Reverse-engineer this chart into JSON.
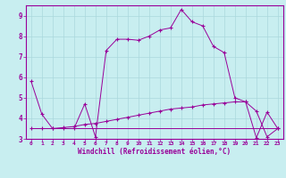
{
  "xlabel": "Windchill (Refroidissement éolien,°C)",
  "bg_color": "#c8eef0",
  "grid_color": "#aad8dc",
  "line_color": "#990099",
  "xlim": [
    -0.5,
    23.5
  ],
  "ylim": [
    3,
    9.5
  ],
  "yticks": [
    3,
    4,
    5,
    6,
    7,
    8,
    9
  ],
  "xticks": [
    0,
    1,
    2,
    3,
    4,
    5,
    6,
    7,
    8,
    9,
    10,
    11,
    12,
    13,
    14,
    15,
    16,
    17,
    18,
    19,
    20,
    21,
    22,
    23
  ],
  "series1_x": [
    0,
    1,
    2,
    3,
    4,
    5,
    6,
    7,
    8,
    9,
    10,
    11,
    12,
    13,
    14,
    15,
    16,
    17,
    18,
    19,
    20,
    21,
    22,
    23
  ],
  "series1_y": [
    5.8,
    4.2,
    3.5,
    3.5,
    3.5,
    4.7,
    3.1,
    7.3,
    7.85,
    7.85,
    7.8,
    8.0,
    8.3,
    8.4,
    9.3,
    8.7,
    8.5,
    7.5,
    7.2,
    5.0,
    4.8,
    4.35,
    3.1,
    3.5
  ],
  "series2_x": [
    0,
    1,
    2,
    3,
    4,
    5,
    6,
    7,
    8,
    9,
    10,
    11,
    12,
    13,
    14,
    15,
    16,
    17,
    18,
    19,
    20,
    21,
    22,
    23
  ],
  "series2_y": [
    3.5,
    3.5,
    3.5,
    3.5,
    3.5,
    3.5,
    3.5,
    3.5,
    3.5,
    3.5,
    3.5,
    3.5,
    3.5,
    3.5,
    3.5,
    3.5,
    3.5,
    3.5,
    3.5,
    3.5,
    3.5,
    3.5,
    3.5,
    3.5
  ],
  "series3_x": [
    0,
    1,
    2,
    3,
    4,
    5,
    6,
    7,
    8,
    9,
    10,
    11,
    12,
    13,
    14,
    15,
    16,
    17,
    18,
    19,
    20,
    21,
    22,
    23
  ],
  "series3_y": [
    3.5,
    3.5,
    3.5,
    3.55,
    3.6,
    3.7,
    3.75,
    3.85,
    3.95,
    4.05,
    4.15,
    4.25,
    4.35,
    4.45,
    4.5,
    4.55,
    4.65,
    4.7,
    4.75,
    4.8,
    4.8,
    3.05,
    4.3,
    3.5
  ]
}
